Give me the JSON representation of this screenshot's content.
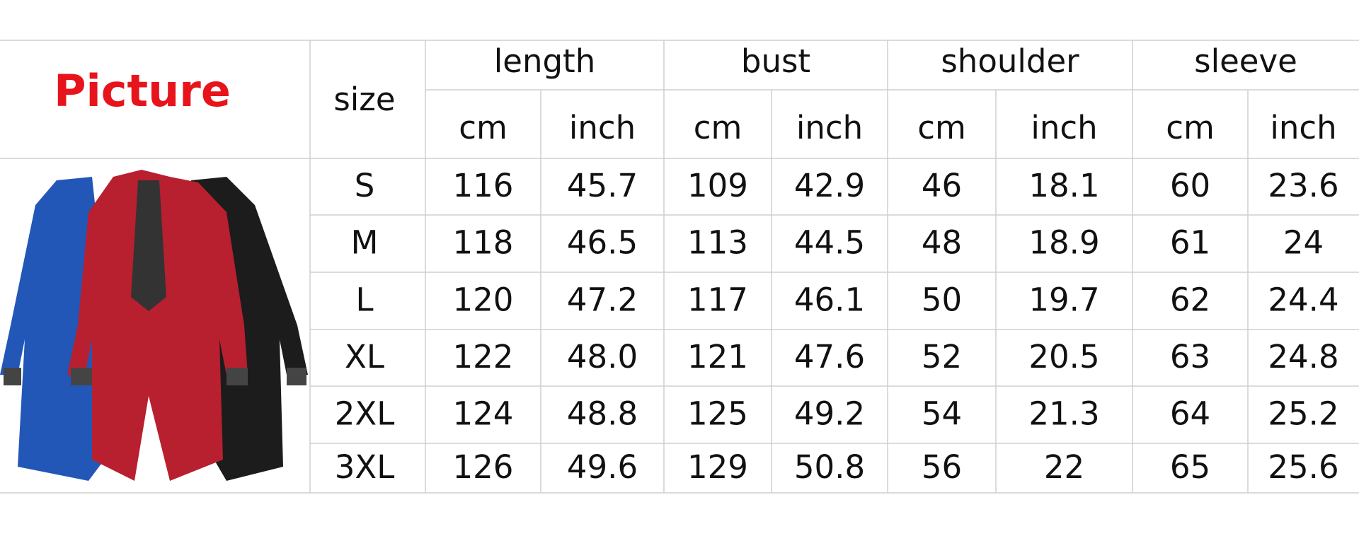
{
  "title": "Picture",
  "size_header": "size",
  "groups": [
    {
      "name": "length",
      "units": [
        "cm",
        "inch"
      ]
    },
    {
      "name": "bust",
      "units": [
        "cm",
        "inch"
      ]
    },
    {
      "name": "shoulder",
      "units": [
        "cm",
        "inch"
      ]
    },
    {
      "name": "sleeve",
      "units": [
        "cm",
        "inch"
      ]
    }
  ],
  "rows": [
    {
      "size": "S",
      "cells": [
        "116",
        "45.7",
        "109",
        "42.9",
        "46",
        "18.1",
        "60",
        "23.6"
      ]
    },
    {
      "size": "M",
      "cells": [
        "118",
        "46.5",
        "113",
        "44.5",
        "48",
        "18.9",
        "61",
        "24"
      ]
    },
    {
      "size": "L",
      "cells": [
        "120",
        "47.2",
        "117",
        "46.1",
        "50",
        "19.7",
        "62",
        "24.4"
      ]
    },
    {
      "size": "XL",
      "cells": [
        "122",
        "48.0",
        "121",
        "47.6",
        "52",
        "20.5",
        "63",
        "24.8"
      ]
    },
    {
      "size": "2XL",
      "cells": [
        "124",
        "48.8",
        "125",
        "49.2",
        "54",
        "21.3",
        "64",
        "25.2"
      ]
    },
    {
      "size": "3XL",
      "cells": [
        "126",
        "49.6",
        "129",
        "50.8",
        "56",
        "22",
        "65",
        "25.6"
      ]
    }
  ]
}
